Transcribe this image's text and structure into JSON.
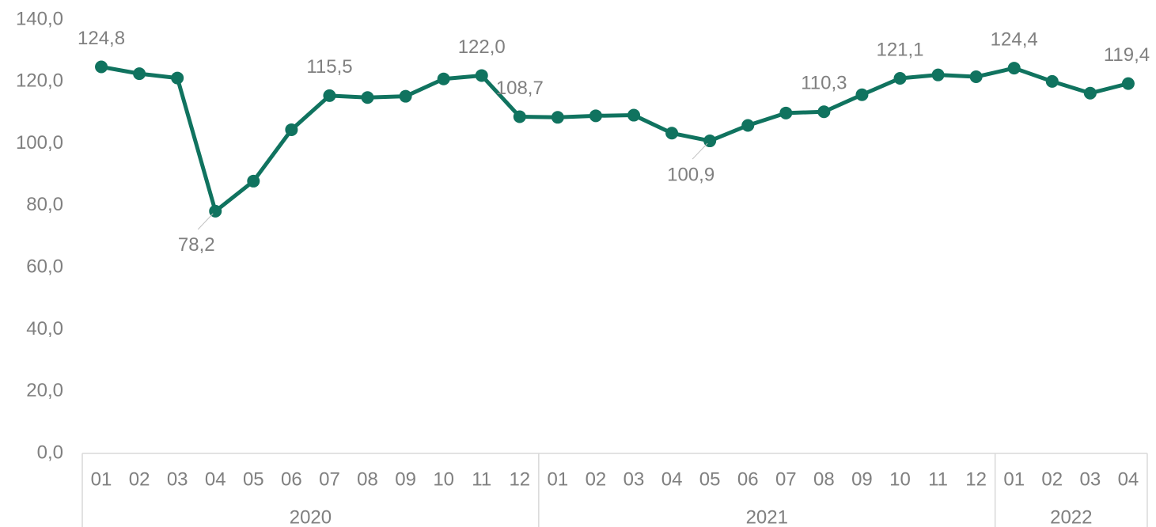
{
  "chart_data": {
    "type": "line",
    "categories": [
      "01",
      "02",
      "03",
      "04",
      "05",
      "06",
      "07",
      "08",
      "09",
      "10",
      "11",
      "12",
      "01",
      "02",
      "03",
      "04",
      "05",
      "06",
      "07",
      "08",
      "09",
      "10",
      "11",
      "12",
      "01",
      "02",
      "03",
      "04"
    ],
    "groups": [
      {
        "name": "2020",
        "span": 12
      },
      {
        "name": "2021",
        "span": 12
      },
      {
        "name": "2022",
        "span": 4
      }
    ],
    "series": [
      {
        "color": "#10735f",
        "values": [
          124.8,
          122.6,
          121.2,
          78.2,
          87.9,
          104.5,
          115.5,
          114.9,
          115.3,
          120.9,
          122.0,
          108.7,
          108.5,
          109.0,
          109.2,
          103.4,
          100.9,
          105.9,
          109.9,
          110.3,
          115.8,
          121.1,
          122.2,
          121.6,
          124.4,
          120.1,
          116.3,
          119.4
        ],
        "value_labels": [
          "124,8",
          null,
          null,
          "78,2",
          null,
          null,
          "115,5",
          null,
          null,
          null,
          "122,0",
          "108,7",
          null,
          null,
          null,
          null,
          "100,9",
          null,
          null,
          "110,3",
          null,
          "121,1",
          null,
          null,
          "124,4",
          null,
          null,
          "119,4"
        ]
      }
    ],
    "ylim": [
      0,
      140
    ],
    "yticks": [
      {
        "value": 0,
        "label": "0,0"
      },
      {
        "value": 20,
        "label": "20,0"
      },
      {
        "value": 40,
        "label": "40,0"
      },
      {
        "value": 60,
        "label": "60,0"
      },
      {
        "value": 80,
        "label": "80,0"
      },
      {
        "value": 100,
        "label": "100,0"
      },
      {
        "value": 120,
        "label": "120,0"
      },
      {
        "value": 140,
        "label": "140,0"
      }
    ],
    "grid": false
  }
}
